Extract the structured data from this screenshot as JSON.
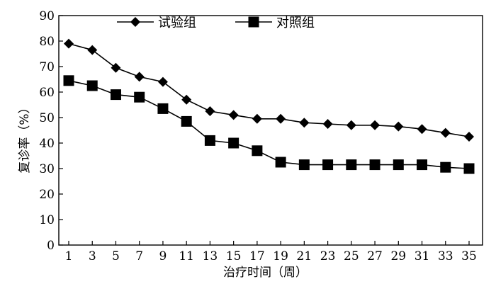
{
  "chart_data": {
    "type": "line",
    "title": "",
    "xlabel": "治疗时间（周）",
    "ylabel": "复诊率（%）",
    "x": [
      1,
      3,
      5,
      7,
      9,
      11,
      13,
      15,
      17,
      19,
      21,
      23,
      25,
      27,
      29,
      31,
      33,
      35
    ],
    "x_ticks": [
      "1",
      "3",
      "5",
      "7",
      "9",
      "11",
      "13",
      "15",
      "17",
      "19",
      "21",
      "23",
      "25",
      "27",
      "29",
      "31",
      "33",
      "35"
    ],
    "ylim": [
      0,
      90
    ],
    "y_ticks": [
      "0",
      "10",
      "20",
      "30",
      "40",
      "50",
      "60",
      "70",
      "80",
      "90"
    ],
    "grid": false,
    "legend_position": "top-left",
    "series": [
      {
        "name": "试验组",
        "marker": "diamond",
        "color": "#000000",
        "values": [
          79,
          76.5,
          69.5,
          66,
          64,
          57,
          52.5,
          51,
          49.5,
          49.5,
          48,
          47.5,
          47,
          47,
          46.5,
          45.5,
          44,
          42.5
        ]
      },
      {
        "name": "对照组",
        "marker": "square",
        "color": "#000000",
        "values": [
          64.5,
          62.5,
          59,
          58,
          53.5,
          48.5,
          41,
          40,
          37,
          32.5,
          31.5,
          31.5,
          31.5,
          31.5,
          31.5,
          31.5,
          30.5,
          30
        ]
      }
    ]
  }
}
